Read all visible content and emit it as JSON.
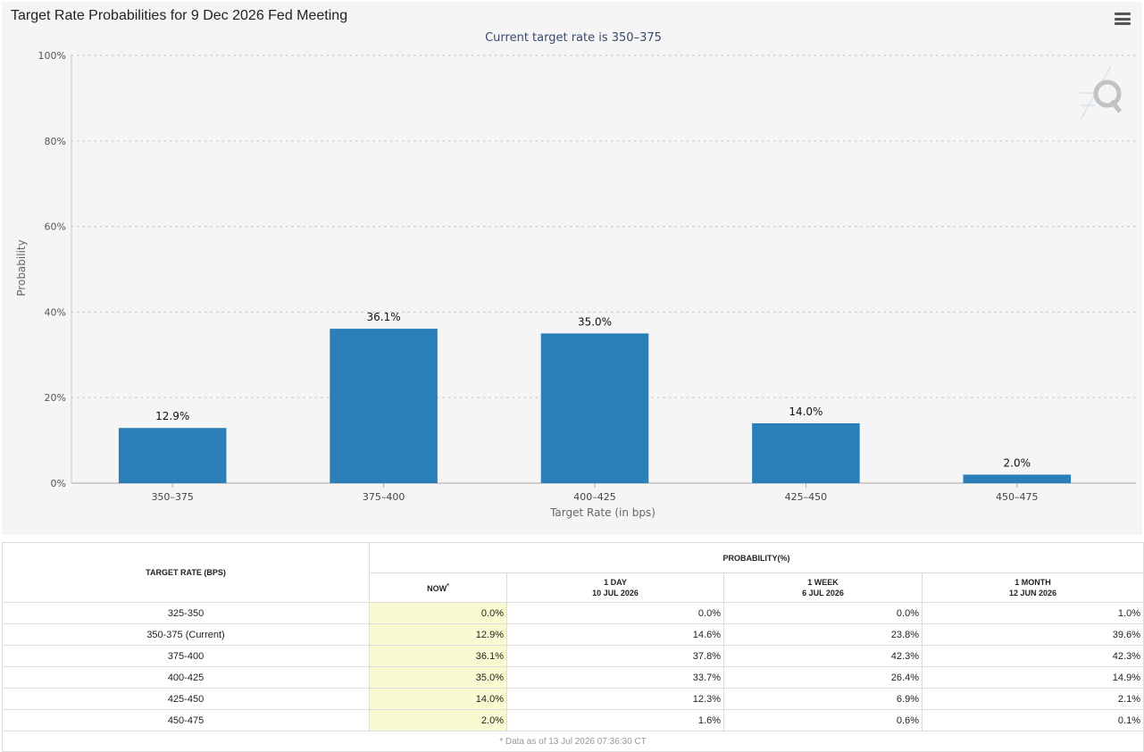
{
  "header": {
    "title": "Target Rate Probabilities for 9 Dec 2026 Fed Meeting"
  },
  "chart_data": {
    "type": "bar",
    "title": "Target Rate Probabilities for 9 Dec 2026 Fed Meeting",
    "subtitle": "Current target rate is 350–375",
    "xlabel": "Target Rate (in bps)",
    "ylabel": "Probability",
    "categories": [
      "350–375",
      "375–400",
      "400–425",
      "425–450",
      "450–475"
    ],
    "values": [
      12.9,
      36.1,
      35.0,
      14.0,
      2.0
    ],
    "data_labels": [
      "12.9%",
      "36.1%",
      "35.0%",
      "14.0%",
      "2.0%"
    ],
    "ylim": [
      0,
      100
    ],
    "yticks": [
      0,
      20,
      40,
      60,
      80,
      100
    ],
    "ytick_labels": [
      "0%",
      "20%",
      "40%",
      "60%",
      "80%",
      "100%"
    ],
    "grid": true,
    "legend": "none",
    "bar_color": "#2b7fb8"
  },
  "table": {
    "target_header": "TARGET RATE (BPS)",
    "prob_header": "PROBABILITY(%)",
    "columns": [
      {
        "line1": "NOW",
        "line2": ""
      },
      {
        "line1": "1 DAY",
        "line2": "10 JUL 2026"
      },
      {
        "line1": "1 WEEK",
        "line2": "6 JUL 2026"
      },
      {
        "line1": "1 MONTH",
        "line2": "12 JUN 2026"
      }
    ],
    "now_mark": "*",
    "rows": [
      {
        "rate": "325-350",
        "values": [
          "0.0%",
          "0.0%",
          "0.0%",
          "1.0%"
        ]
      },
      {
        "rate": "350-375 (Current)",
        "values": [
          "12.9%",
          "14.6%",
          "23.8%",
          "39.6%"
        ]
      },
      {
        "rate": "375-400",
        "values": [
          "36.1%",
          "37.8%",
          "42.3%",
          "42.3%"
        ]
      },
      {
        "rate": "400-425",
        "values": [
          "35.0%",
          "33.7%",
          "26.4%",
          "14.9%"
        ]
      },
      {
        "rate": "425-450",
        "values": [
          "14.0%",
          "12.3%",
          "6.9%",
          "2.1%"
        ]
      },
      {
        "rate": "450-475",
        "values": [
          "2.0%",
          "1.6%",
          "0.6%",
          "0.1%"
        ]
      }
    ],
    "footnote": "* Data as of 13 Jul 2026 07:36:30 CT"
  }
}
